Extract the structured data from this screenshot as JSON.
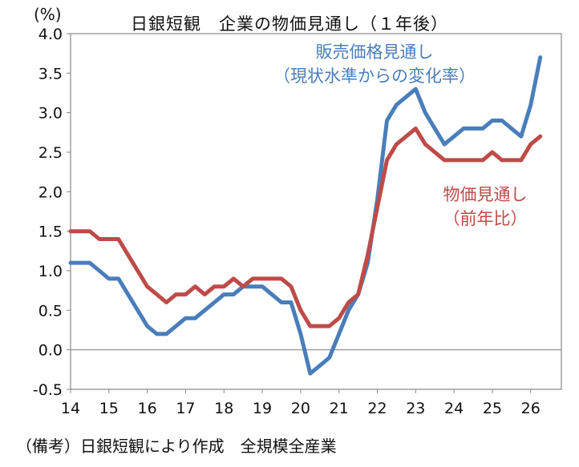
{
  "chart_data": {
    "type": "line",
    "title": "日銀短観　企業の物価見通し（１年後）",
    "ylabel": "(%)",
    "xlabel": "",
    "ylim": [
      -0.5,
      4.0
    ],
    "yticks": [
      "4.0",
      "3.5",
      "3.0",
      "2.5",
      "2.0",
      "1.5",
      "1.0",
      "0.5",
      "0.0",
      "-0.5"
    ],
    "xticks": [
      "14",
      "15",
      "16",
      "17",
      "18",
      "19",
      "20",
      "21",
      "22",
      "23",
      "24",
      "25",
      "26"
    ],
    "xlim": [
      14,
      26.8
    ],
    "grid": false,
    "series": [
      {
        "name": "販売価格見通し（現状水準からの変化率）",
        "color": "#4a7ebb",
        "x": [
          14.0,
          14.25,
          14.5,
          14.75,
          15.0,
          15.25,
          15.5,
          15.75,
          16.0,
          16.25,
          16.5,
          16.75,
          17.0,
          17.25,
          17.5,
          17.75,
          18.0,
          18.25,
          18.5,
          18.75,
          19.0,
          19.25,
          19.5,
          19.75,
          20.0,
          20.25,
          20.5,
          20.75,
          21.0,
          21.25,
          21.5,
          21.75,
          22.0,
          22.25,
          22.5,
          22.75,
          23.0,
          23.25,
          23.5,
          23.75,
          24.0,
          24.25,
          24.5,
          24.75,
          25.0,
          25.25,
          25.5,
          25.75,
          26.0,
          26.25
        ],
        "values": [
          1.1,
          1.1,
          1.1,
          1.0,
          0.9,
          0.9,
          0.7,
          0.5,
          0.3,
          0.2,
          0.2,
          0.3,
          0.4,
          0.4,
          0.5,
          0.6,
          0.7,
          0.7,
          0.8,
          0.8,
          0.8,
          0.7,
          0.6,
          0.6,
          0.2,
          -0.3,
          -0.2,
          -0.1,
          0.2,
          0.5,
          0.7,
          1.1,
          1.9,
          2.9,
          3.1,
          3.2,
          3.3,
          3.0,
          2.8,
          2.6,
          2.7,
          2.8,
          2.8,
          2.8,
          2.9,
          2.9,
          2.8,
          2.7,
          3.1,
          3.7
        ]
      },
      {
        "name": "物価見通し（前年比）",
        "color": "#be4b48",
        "x": [
          14.0,
          14.25,
          14.5,
          14.75,
          15.0,
          15.25,
          15.5,
          15.75,
          16.0,
          16.25,
          16.5,
          16.75,
          17.0,
          17.25,
          17.5,
          17.75,
          18.0,
          18.25,
          18.5,
          18.75,
          19.0,
          19.25,
          19.5,
          19.75,
          20.0,
          20.25,
          20.5,
          20.75,
          21.0,
          21.25,
          21.5,
          21.75,
          22.0,
          22.25,
          22.5,
          22.75,
          23.0,
          23.25,
          23.5,
          23.75,
          24.0,
          24.25,
          24.5,
          24.75,
          25.0,
          25.25,
          25.5,
          25.75,
          26.0,
          26.25
        ],
        "values": [
          1.5,
          1.5,
          1.5,
          1.4,
          1.4,
          1.4,
          1.2,
          1.0,
          0.8,
          0.7,
          0.6,
          0.7,
          0.7,
          0.8,
          0.7,
          0.8,
          0.8,
          0.9,
          0.8,
          0.9,
          0.9,
          0.9,
          0.9,
          0.8,
          0.5,
          0.3,
          0.3,
          0.3,
          0.4,
          0.6,
          0.7,
          1.2,
          1.8,
          2.4,
          2.6,
          2.7,
          2.8,
          2.6,
          2.5,
          2.4,
          2.4,
          2.4,
          2.4,
          2.4,
          2.5,
          2.4,
          2.4,
          2.4,
          2.6,
          2.7
        ]
      }
    ],
    "annotations": {
      "blue_line1": "販売価格見通し",
      "blue_line2": "（現状水準からの変化率）",
      "red_line1": "物価見通し",
      "red_line2": "（前年比）"
    },
    "note": "（備考）日銀短観により作成　全規模全産業"
  }
}
